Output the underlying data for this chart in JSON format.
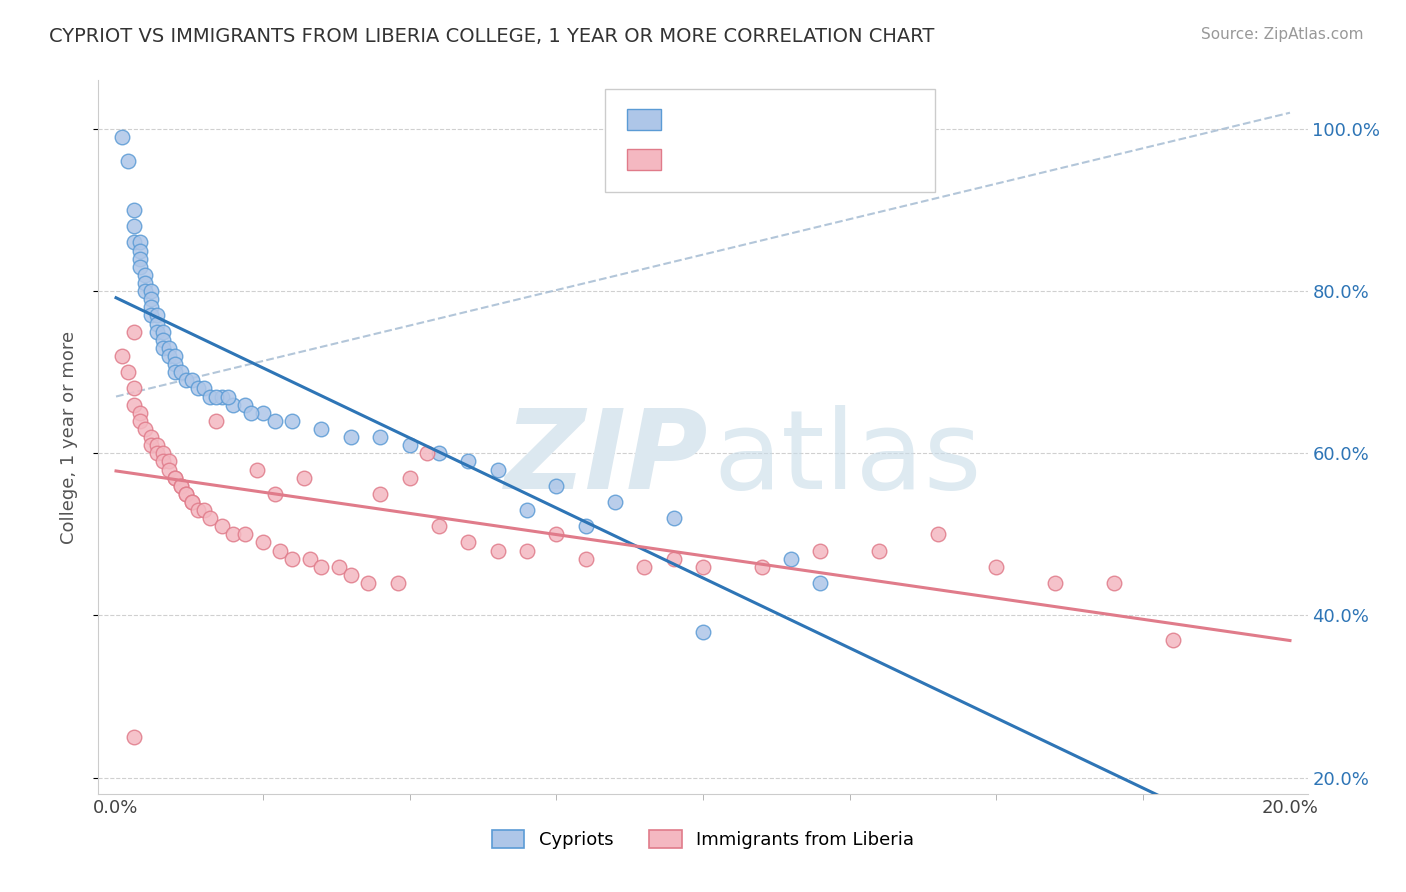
{
  "title": "CYPRIOT VS IMMIGRANTS FROM LIBERIA COLLEGE, 1 YEAR OR MORE CORRELATION CHART",
  "source_text": "Source: ZipAtlas.com",
  "ylabel": "College, 1 year or more",
  "xlim": [
    0.0,
    0.2
  ],
  "ylim": [
    0.2,
    1.05
  ],
  "xtick_labels": [
    "0.0%",
    "20.0%"
  ],
  "ytick_labels": [
    "20.0%",
    "40.0%",
    "60.0%",
    "80.0%",
    "100.0%"
  ],
  "ytick_values": [
    0.2,
    0.4,
    0.6,
    0.8,
    1.0
  ],
  "xtick_values": [
    0.0,
    0.2
  ],
  "cypriot_color": "#aec6e8",
  "liberia_color": "#f4b8c1",
  "cypriot_edge": "#5b9bd5",
  "liberia_edge": "#e07b8a",
  "trend_cypriot_color": "#2e75b6",
  "trend_liberia_color": "#e07b8a",
  "r_value_color": "#2e75b6",
  "cypriot_x": [
    0.001,
    0.002,
    0.003,
    0.003,
    0.003,
    0.004,
    0.004,
    0.004,
    0.004,
    0.005,
    0.005,
    0.005,
    0.006,
    0.006,
    0.006,
    0.006,
    0.007,
    0.007,
    0.007,
    0.008,
    0.008,
    0.008,
    0.009,
    0.009,
    0.01,
    0.01,
    0.01,
    0.011,
    0.012,
    0.013,
    0.014,
    0.015,
    0.016,
    0.018,
    0.02,
    0.022,
    0.025,
    0.03,
    0.035,
    0.05,
    0.06,
    0.065,
    0.1,
    0.07,
    0.08,
    0.04,
    0.045,
    0.055,
    0.075,
    0.085,
    0.095,
    0.115,
    0.12,
    0.017,
    0.019,
    0.023,
    0.027
  ],
  "cypriot_y": [
    0.99,
    0.96,
    0.9,
    0.88,
    0.86,
    0.86,
    0.85,
    0.84,
    0.83,
    0.82,
    0.81,
    0.8,
    0.8,
    0.79,
    0.78,
    0.77,
    0.77,
    0.76,
    0.75,
    0.75,
    0.74,
    0.73,
    0.73,
    0.72,
    0.72,
    0.71,
    0.7,
    0.7,
    0.69,
    0.69,
    0.68,
    0.68,
    0.67,
    0.67,
    0.66,
    0.66,
    0.65,
    0.64,
    0.63,
    0.61,
    0.59,
    0.58,
    0.38,
    0.53,
    0.51,
    0.62,
    0.62,
    0.6,
    0.56,
    0.54,
    0.52,
    0.47,
    0.44,
    0.67,
    0.67,
    0.65,
    0.64
  ],
  "liberia_x": [
    0.001,
    0.002,
    0.003,
    0.003,
    0.004,
    0.004,
    0.005,
    0.006,
    0.006,
    0.007,
    0.007,
    0.008,
    0.008,
    0.009,
    0.009,
    0.01,
    0.01,
    0.011,
    0.011,
    0.012,
    0.012,
    0.013,
    0.013,
    0.014,
    0.015,
    0.016,
    0.018,
    0.02,
    0.022,
    0.025,
    0.028,
    0.03,
    0.033,
    0.035,
    0.038,
    0.04,
    0.043,
    0.048,
    0.055,
    0.06,
    0.065,
    0.07,
    0.08,
    0.09,
    0.1,
    0.11,
    0.13,
    0.15,
    0.16,
    0.17,
    0.05,
    0.075,
    0.095,
    0.12,
    0.14,
    0.003,
    0.045,
    0.017,
    0.053,
    0.024,
    0.032,
    0.027,
    0.18,
    0.003
  ],
  "liberia_y": [
    0.72,
    0.7,
    0.68,
    0.66,
    0.65,
    0.64,
    0.63,
    0.62,
    0.61,
    0.61,
    0.6,
    0.6,
    0.59,
    0.59,
    0.58,
    0.57,
    0.57,
    0.56,
    0.56,
    0.55,
    0.55,
    0.54,
    0.54,
    0.53,
    0.53,
    0.52,
    0.51,
    0.5,
    0.5,
    0.49,
    0.48,
    0.47,
    0.47,
    0.46,
    0.46,
    0.45,
    0.44,
    0.44,
    0.51,
    0.49,
    0.48,
    0.48,
    0.47,
    0.46,
    0.46,
    0.46,
    0.48,
    0.46,
    0.44,
    0.44,
    0.57,
    0.5,
    0.47,
    0.48,
    0.5,
    0.75,
    0.55,
    0.64,
    0.6,
    0.58,
    0.57,
    0.55,
    0.37,
    0.25
  ]
}
